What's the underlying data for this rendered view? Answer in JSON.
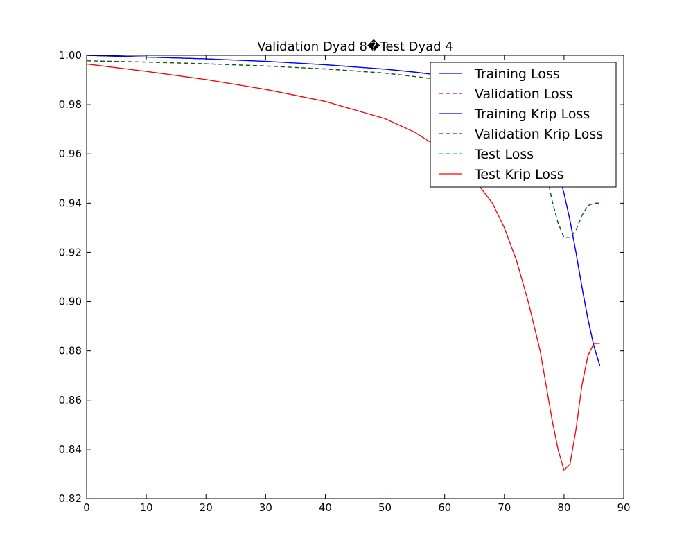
{
  "chart_data": {
    "type": "line",
    "title": "Validation Dyad 8�Test Dyad 4",
    "xlabel": "",
    "ylabel": "",
    "xlim": [
      0,
      90
    ],
    "ylim": [
      0.82,
      1.0
    ],
    "xticks": [
      0,
      10,
      20,
      30,
      40,
      50,
      60,
      70,
      80,
      90
    ],
    "yticks": [
      0.82,
      0.84,
      0.86,
      0.88,
      0.9,
      0.92,
      0.94,
      0.96,
      0.98,
      1.0
    ],
    "ytick_labels": [
      "0.82",
      "0.84",
      "0.86",
      "0.88",
      "0.90",
      "0.92",
      "0.94",
      "0.96",
      "0.98",
      "1.00"
    ],
    "grid": false,
    "legend_position": "top-right",
    "series": [
      {
        "name": "Training Loss",
        "color": "#0000ff",
        "dash": "solid",
        "x": [
          0,
          10,
          20,
          30,
          40,
          50,
          55,
          60,
          65,
          70,
          72,
          74,
          76,
          78,
          79,
          80,
          81,
          82,
          83,
          84,
          85,
          86
        ],
        "y": [
          1.0,
          0.9993,
          0.9986,
          0.9976,
          0.9962,
          0.9944,
          0.9932,
          0.9917,
          0.9893,
          0.985,
          0.982,
          0.977,
          0.97,
          0.96,
          0.953,
          0.944,
          0.933,
          0.92,
          0.906,
          0.893,
          0.882,
          0.874
        ]
      },
      {
        "name": "Validation Loss",
        "color": "#bf00bf",
        "dash": "dashed",
        "x": [
          0,
          10,
          20,
          30,
          40,
          50,
          60,
          65,
          70,
          72,
          74,
          76,
          77,
          78,
          79,
          80,
          81,
          82,
          83,
          84,
          85,
          86
        ],
        "y": [
          0.9978,
          0.9973,
          0.9966,
          0.9957,
          0.9945,
          0.9928,
          0.99,
          0.987,
          0.98,
          0.976,
          0.97,
          0.961,
          0.953,
          0.941,
          0.932,
          0.926,
          0.926,
          0.929,
          0.935,
          0.939,
          0.94,
          0.94
        ]
      },
      {
        "name": "Training Krip Loss",
        "color": "#0000ff",
        "dash": "solid",
        "x": [
          0,
          10,
          20,
          30,
          40,
          50,
          55,
          60,
          65,
          70,
          72,
          74,
          76,
          78,
          79,
          80,
          81,
          82,
          83,
          84,
          85,
          86
        ],
        "y": [
          1.0,
          0.9993,
          0.9986,
          0.9976,
          0.9962,
          0.9944,
          0.9932,
          0.9917,
          0.9893,
          0.985,
          0.982,
          0.977,
          0.97,
          0.96,
          0.953,
          0.944,
          0.933,
          0.92,
          0.906,
          0.893,
          0.882,
          0.874
        ]
      },
      {
        "name": "Validation Krip Loss",
        "color": "#006400",
        "dash": "dashed",
        "x": [
          0,
          10,
          20,
          30,
          40,
          50,
          60,
          65,
          70,
          72,
          74,
          76,
          77,
          78,
          79,
          80,
          81,
          82,
          83,
          84,
          85,
          86
        ],
        "y": [
          0.9978,
          0.9973,
          0.9966,
          0.9957,
          0.9945,
          0.9928,
          0.99,
          0.987,
          0.98,
          0.976,
          0.97,
          0.961,
          0.953,
          0.941,
          0.932,
          0.926,
          0.926,
          0.929,
          0.935,
          0.939,
          0.94,
          0.94
        ]
      },
      {
        "name": "Test Loss",
        "color": "#00bfbf",
        "dash": "dashed",
        "x": [
          0,
          10,
          20,
          30,
          40,
          50,
          55,
          60,
          65,
          68,
          70,
          72,
          74,
          76,
          77,
          78,
          79,
          80,
          81,
          82,
          83,
          84,
          85,
          86
        ],
        "y": [
          0.9965,
          0.9935,
          0.9902,
          0.9862,
          0.9813,
          0.9743,
          0.9688,
          0.961,
          0.9495,
          0.94,
          0.93,
          0.917,
          0.9,
          0.88,
          0.866,
          0.852,
          0.84,
          0.8315,
          0.834,
          0.848,
          0.866,
          0.878,
          0.883,
          0.883
        ]
      },
      {
        "name": "Test Krip Loss",
        "color": "#ff0000",
        "dash": "solid",
        "x": [
          0,
          10,
          20,
          30,
          40,
          50,
          55,
          60,
          65,
          68,
          70,
          72,
          74,
          76,
          77,
          78,
          79,
          80,
          81,
          82,
          83,
          84,
          85,
          86
        ],
        "y": [
          0.9965,
          0.9935,
          0.9902,
          0.9862,
          0.9813,
          0.9743,
          0.9688,
          0.961,
          0.9495,
          0.94,
          0.93,
          0.917,
          0.9,
          0.88,
          0.866,
          0.852,
          0.84,
          0.8315,
          0.834,
          0.848,
          0.866,
          0.878,
          0.883,
          0.883
        ]
      }
    ]
  }
}
